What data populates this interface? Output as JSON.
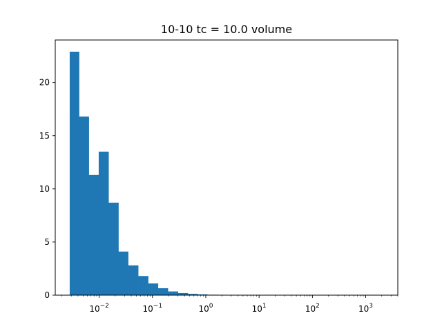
{
  "chart_data": {
    "type": "bar",
    "title": "10-10 tc = 10.0 volume",
    "xlabel": "",
    "ylabel": "",
    "x_scale": "log",
    "xlim": [
      0.0015,
      4000
    ],
    "ylim": [
      0,
      24
    ],
    "grid": false,
    "color": "#1f77b4",
    "bins": [
      {
        "left": 0.0028,
        "right": 0.0042,
        "value": 22.9
      },
      {
        "left": 0.0042,
        "right": 0.0064,
        "value": 16.8
      },
      {
        "left": 0.0064,
        "right": 0.0098,
        "value": 11.3
      },
      {
        "left": 0.0098,
        "right": 0.015,
        "value": 13.5
      },
      {
        "left": 0.015,
        "right": 0.023,
        "value": 8.7
      },
      {
        "left": 0.023,
        "right": 0.035,
        "value": 4.1
      },
      {
        "left": 0.035,
        "right": 0.054,
        "value": 2.8
      },
      {
        "left": 0.054,
        "right": 0.083,
        "value": 1.8
      },
      {
        "left": 0.083,
        "right": 0.127,
        "value": 1.1
      },
      {
        "left": 0.127,
        "right": 0.195,
        "value": 0.65
      },
      {
        "left": 0.195,
        "right": 0.3,
        "value": 0.35
      },
      {
        "left": 0.3,
        "right": 0.46,
        "value": 0.2
      },
      {
        "left": 0.46,
        "right": 0.7,
        "value": 0.12
      },
      {
        "left": 0.7,
        "right": 1.07,
        "value": 0.07
      },
      {
        "left": 1.07,
        "right": 1.64,
        "value": 0.04
      }
    ],
    "x_ticks": [
      {
        "value": 0.01,
        "base": "10",
        "exp": "−2"
      },
      {
        "value": 0.1,
        "base": "10",
        "exp": "−1"
      },
      {
        "value": 1,
        "base": "10",
        "exp": "0"
      },
      {
        "value": 10,
        "base": "10",
        "exp": "1"
      },
      {
        "value": 100,
        "base": "10",
        "exp": "2"
      },
      {
        "value": 1000,
        "base": "10",
        "exp": "3"
      }
    ],
    "y_ticks": [
      {
        "value": 0,
        "label": "0"
      },
      {
        "value": 5,
        "label": "5"
      },
      {
        "value": 10,
        "label": "10"
      },
      {
        "value": 15,
        "label": "15"
      },
      {
        "value": 20,
        "label": "20"
      }
    ]
  }
}
